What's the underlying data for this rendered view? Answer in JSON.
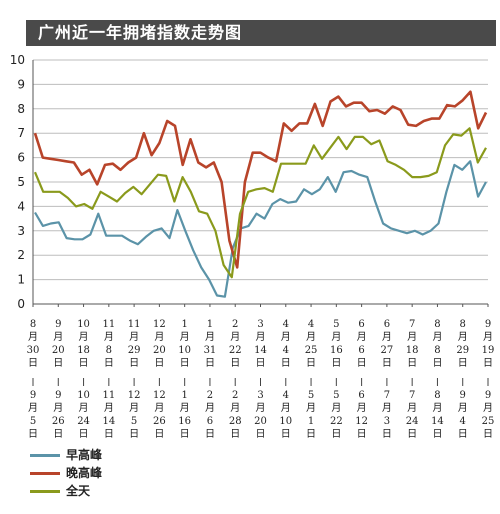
{
  "colors": {
    "title_bg": "#4a4a4a",
    "morning": "#5b93a8",
    "evening": "#b8442a",
    "allday": "#8a9a1c",
    "grid": "#bbbbbb"
  },
  "chart_data": {
    "type": "line",
    "title": "广州近一年拥堵指数走势图",
    "ylim": [
      0,
      10
    ],
    "yticks": [
      "0",
      "1",
      "2",
      "3",
      "4",
      "5",
      "6",
      "7",
      "8",
      "9",
      "10"
    ],
    "xlabels": [
      {
        "top": [
          "8",
          "月",
          "30",
          "日"
        ],
        "bottom": [
          "9",
          "月",
          "5",
          "日"
        ]
      },
      {
        "top": [
          "9",
          "月",
          "20",
          "日"
        ],
        "bottom": [
          "9",
          "月",
          "26",
          "日"
        ]
      },
      {
        "top": [
          "10",
          "月",
          "18",
          "日"
        ],
        "bottom": [
          "10",
          "月",
          "24",
          "日"
        ]
      },
      {
        "top": [
          "11",
          "月",
          "8",
          "日"
        ],
        "bottom": [
          "11",
          "月",
          "14",
          "日"
        ]
      },
      {
        "top": [
          "11",
          "月",
          "29",
          "日"
        ],
        "bottom": [
          "12",
          "月",
          "5",
          "日"
        ]
      },
      {
        "top": [
          "12",
          "月",
          "20",
          "日"
        ],
        "bottom": [
          "12",
          "月",
          "26",
          "日"
        ]
      },
      {
        "top": [
          "1",
          "月",
          "10",
          "日"
        ],
        "bottom": [
          "1",
          "月",
          "16",
          "日"
        ]
      },
      {
        "top": [
          "1",
          "月",
          "31",
          "日"
        ],
        "bottom": [
          "2",
          "月",
          "6",
          "日"
        ]
      },
      {
        "top": [
          "2",
          "月",
          "22",
          "日"
        ],
        "bottom": [
          "2",
          "月",
          "28",
          "日"
        ]
      },
      {
        "top": [
          "3",
          "月",
          "14",
          "日"
        ],
        "bottom": [
          "3",
          "月",
          "20",
          "日"
        ]
      },
      {
        "top": [
          "4",
          "月",
          "4",
          "日"
        ],
        "bottom": [
          "4",
          "月",
          "10",
          "日"
        ]
      },
      {
        "top": [
          "4",
          "月",
          "25",
          "日"
        ],
        "bottom": [
          "5",
          "月",
          "1",
          "日"
        ]
      },
      {
        "top": [
          "5",
          "月",
          "16",
          "日"
        ],
        "bottom": [
          "5",
          "月",
          "22",
          "日"
        ]
      },
      {
        "top": [
          "6",
          "月",
          "6",
          "日"
        ],
        "bottom": [
          "6",
          "月",
          "12",
          "日"
        ]
      },
      {
        "top": [
          "6",
          "月",
          "27",
          "日"
        ],
        "bottom": [
          "7",
          "月",
          "3",
          "日"
        ]
      },
      {
        "top": [
          "7",
          "月",
          "18",
          "日"
        ],
        "bottom": [
          "7",
          "月",
          "24",
          "日"
        ]
      },
      {
        "top": [
          "8",
          "月",
          "8",
          "日"
        ],
        "bottom": [
          "8",
          "月",
          "14",
          "日"
        ]
      },
      {
        "top": [
          "8",
          "月",
          "29",
          "日"
        ],
        "bottom": [
          "9",
          "月",
          "4",
          "日"
        ]
      },
      {
        "top": [
          "9",
          "月",
          "19",
          "日"
        ],
        "bottom": [
          "9",
          "月",
          "25",
          "日"
        ]
      }
    ],
    "series": [
      {
        "name": "早高峰",
        "color": "#5b93a8",
        "values": [
          3.75,
          3.2,
          3.3,
          3.35,
          2.7,
          2.65,
          2.65,
          2.85,
          3.7,
          2.8,
          2.8,
          2.8,
          2.6,
          2.45,
          2.75,
          3.0,
          3.1,
          2.7,
          3.85,
          3.0,
          2.2,
          1.5,
          1.0,
          0.35,
          0.3,
          2.3,
          3.1,
          3.2,
          3.7,
          3.5,
          4.1,
          4.3,
          4.15,
          4.2,
          4.7,
          4.5,
          4.7,
          5.2,
          4.6,
          5.4,
          5.45,
          5.3,
          5.2,
          4.2,
          3.3,
          3.1,
          3.0,
          2.9,
          3.0,
          2.85,
          3.0,
          3.3,
          4.6,
          5.7,
          5.5,
          5.85,
          4.4,
          5.0
        ]
      },
      {
        "name": "晚高峰",
        "color": "#b8442a",
        "values": [
          7.0,
          6.0,
          5.95,
          5.9,
          5.85,
          5.8,
          5.3,
          5.5,
          4.9,
          5.7,
          5.75,
          5.5,
          5.8,
          6.0,
          7.0,
          6.1,
          6.6,
          7.5,
          7.3,
          5.7,
          6.75,
          5.8,
          5.6,
          5.8,
          5.0,
          2.6,
          1.5,
          5.0,
          6.2,
          6.2,
          6.0,
          5.85,
          7.4,
          7.1,
          7.4,
          7.4,
          8.2,
          7.3,
          8.3,
          8.5,
          8.1,
          8.25,
          8.25,
          7.9,
          7.95,
          7.8,
          8.1,
          7.95,
          7.35,
          7.3,
          7.5,
          7.6,
          7.6,
          8.15,
          8.1,
          8.35,
          8.7,
          7.2,
          7.85
        ]
      },
      {
        "name": "全天",
        "color": "#8a9a1c",
        "values": [
          5.4,
          4.6,
          4.6,
          4.6,
          4.35,
          4.0,
          4.1,
          3.9,
          4.6,
          4.4,
          4.2,
          4.55,
          4.8,
          4.5,
          4.9,
          5.3,
          5.25,
          4.2,
          5.2,
          4.6,
          3.8,
          3.7,
          3.0,
          1.6,
          1.1,
          3.7,
          4.6,
          4.7,
          4.75,
          4.6,
          5.75,
          5.75,
          5.75,
          5.75,
          6.5,
          5.95,
          6.4,
          6.85,
          6.35,
          6.85,
          6.85,
          6.55,
          6.7,
          5.85,
          5.7,
          5.5,
          5.2,
          5.2,
          5.25,
          5.4,
          6.5,
          6.95,
          6.9,
          7.2,
          5.8,
          6.4
        ]
      }
    ]
  },
  "legend": [
    {
      "label": "早高峰",
      "color": "#5b93a8"
    },
    {
      "label": "晚高峰",
      "color": "#b8442a"
    },
    {
      "label": "全天",
      "color": "#8a9a1c"
    }
  ]
}
